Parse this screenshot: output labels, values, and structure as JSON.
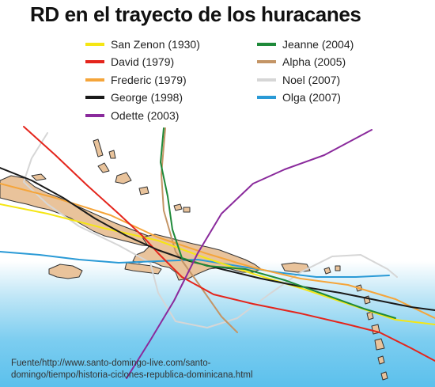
{
  "title": "RD en el trayecto de los huracanes",
  "legend": [
    {
      "name": "San Zenon (1930)",
      "color": "#f5e614"
    },
    {
      "name": "David (1979)",
      "color": "#e4251c"
    },
    {
      "name": "Frederic (1979)",
      "color": "#f5a53a"
    },
    {
      "name": "George (1998)",
      "color": "#1a1a1a"
    },
    {
      "name": "Odette (2003)",
      "color": "#8a2a9c"
    },
    {
      "name": "Jeanne (2004)",
      "color": "#1f8a3a"
    },
    {
      "name": "Alpha (2005)",
      "color": "#c49566"
    },
    {
      "name": "Noel (2007)",
      "color": "#d6d6d6"
    },
    {
      "name": "Olga (2007)",
      "color": "#2a9ad6"
    }
  ],
  "colors": {
    "land": "#e9c39b",
    "land_outline": "#333333",
    "sea_deep": "#5bc0ec"
  },
  "source": {
    "line1": "Fuente/http://www.santo-domingo-live.com/santo-",
    "line2": "domingo/tiempo/historia-ciclones-republica-dominicana.html"
  }
}
